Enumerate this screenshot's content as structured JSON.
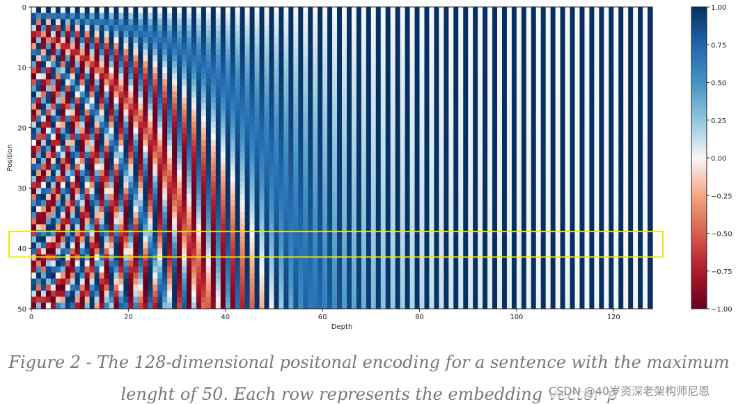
{
  "chart_data": {
    "type": "heatmap",
    "title": "",
    "xlabel": "Depth",
    "ylabel": "Position",
    "x_ticks": [
      0,
      20,
      40,
      60,
      80,
      100,
      120
    ],
    "y_ticks": [
      0,
      10,
      20,
      30,
      40,
      50
    ],
    "x_range": [
      0,
      128
    ],
    "y_range": [
      0,
      50
    ],
    "rows": 50,
    "cols": 128,
    "colormap": "RdBu",
    "color_range": [
      -1.0,
      1.0
    ],
    "colorbar_ticks": [
      "1.00",
      "0.75",
      "0.50",
      "0.25",
      "0.00",
      "−0.25",
      "−0.50",
      "−0.75",
      "−1.00"
    ],
    "colorbar_tick_values": [
      1.0,
      0.75,
      0.5,
      0.25,
      0.0,
      -0.25,
      -0.5,
      -0.75,
      -1.0
    ],
    "highlight_rows": [
      38,
      42
    ],
    "highlight_color": "#f2e600",
    "colors": {
      "low": "#67001f",
      "mid": "#f7f7f7",
      "high": "#053061"
    }
  },
  "caption": {
    "line1": "Figure 2 - The 128-dimensional positonal encoding for a sentence with the maximum",
    "line2": "lenght of 50. Each row represents the embedding vector  p"
  },
  "watermark": "CSDN @40岁资深老架构师尼恩"
}
